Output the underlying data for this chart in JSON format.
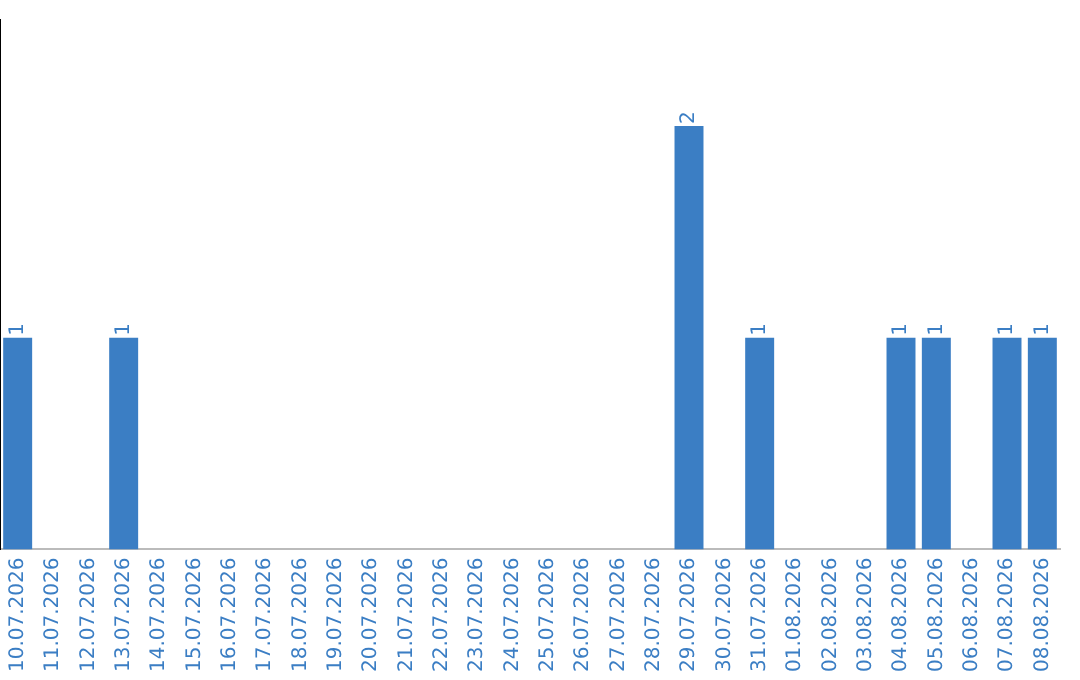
{
  "chart_data": {
    "type": "bar",
    "categories": [
      "10.07.2026",
      "11.07.2026",
      "12.07.2026",
      "13.07.2026",
      "14.07.2026",
      "15.07.2026",
      "16.07.2026",
      "17.07.2026",
      "18.07.2026",
      "19.07.2026",
      "20.07.2026",
      "21.07.2026",
      "22.07.2026",
      "23.07.2026",
      "24.07.2026",
      "25.07.2026",
      "26.07.2026",
      "27.07.2026",
      "28.07.2026",
      "29.07.2026",
      "30.07.2026",
      "31.07.2026",
      "01.08.2026",
      "02.08.2026",
      "03.08.2026",
      "04.08.2026",
      "05.08.2026",
      "06.08.2026",
      "07.08.2026",
      "08.08.2026"
    ],
    "values": [
      1,
      0,
      0,
      1,
      0,
      0,
      0,
      0,
      0,
      0,
      0,
      0,
      0,
      0,
      0,
      0,
      0,
      0,
      0,
      2,
      0,
      1,
      0,
      0,
      0,
      1,
      1,
      0,
      1,
      1
    ],
    "value_labels": [
      "1",
      null,
      null,
      "1",
      null,
      null,
      null,
      null,
      null,
      null,
      null,
      null,
      null,
      null,
      null,
      null,
      null,
      null,
      null,
      "2",
      null,
      "1",
      null,
      null,
      null,
      "1",
      "1",
      null,
      "1",
      "1"
    ],
    "color": "#3b7ec4",
    "grid": false,
    "legend": false,
    "tick_labels": "x"
  }
}
